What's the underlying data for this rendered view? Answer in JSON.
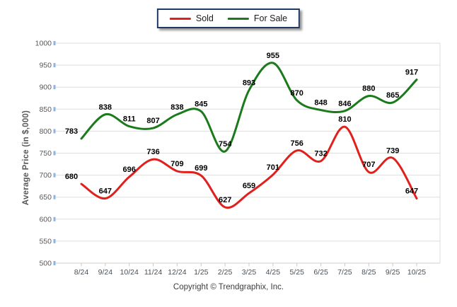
{
  "page": {
    "copyright": "Copyright © Trendgraphix, Inc."
  },
  "legend": {
    "position": "top-center",
    "border_color": "#1F3864"
  },
  "chart_data": {
    "type": "line",
    "title": "",
    "xlabel": "",
    "ylabel": "Average Price (in $,000)",
    "ylim": [
      500,
      1000
    ],
    "ytick_step": 50,
    "grid": true,
    "legend_position": "top-center",
    "categories": [
      "8/24",
      "9/24",
      "10/24",
      "11/24",
      "12/24",
      "1/25",
      "2/25",
      "3/25",
      "4/25",
      "5/25",
      "6/25",
      "7/25",
      "8/25",
      "9/25",
      "10/25"
    ],
    "series": [
      {
        "name": "Sold",
        "color": "#E0201C",
        "values": [
          680,
          647,
          696,
          736,
          709,
          699,
          627,
          659,
          701,
          756,
          732,
          810,
          707,
          739,
          647
        ]
      },
      {
        "name": "For Sale",
        "color": "#1B7A1B",
        "values": [
          783,
          838,
          811,
          807,
          838,
          845,
          754,
          893,
          955,
          870,
          848,
          846,
          880,
          865,
          917
        ]
      }
    ],
    "colors": {
      "gridline": "#DEDEDE",
      "axis_baseline": "#CFCFCF",
      "y_axis_text": "#595959",
      "x_axis_text": "#44505A",
      "data_label_text": "#000000",
      "y_axis_tick_blue": "#8DB4E2"
    }
  }
}
